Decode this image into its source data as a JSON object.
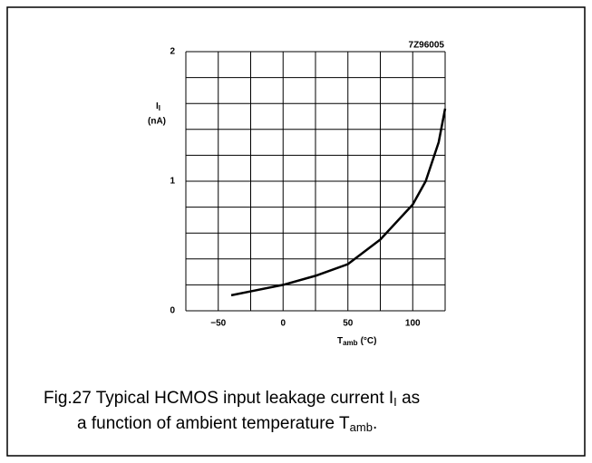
{
  "chart_data": {
    "type": "line",
    "code": "7Z96005",
    "ylabel": {
      "main": "I",
      "sub": "I",
      "unit": "(nA)"
    },
    "xlabel": {
      "main": "T",
      "sub": "amb",
      "unit": "(°C)"
    },
    "caption": {
      "line1": {
        "text": "Fig.27  Typical HCMOS input leakage current I",
        "sub": "I",
        "tail": " as"
      },
      "line2": {
        "text": "a function of ambient temperature T",
        "sub": "amb",
        "tail": "."
      }
    },
    "x": [
      -40,
      -25,
      0,
      25,
      50,
      75,
      100,
      110,
      120,
      125
    ],
    "series": [
      {
        "color": "#000000",
        "values": [
          0.12,
          0.15,
          0.2,
          0.27,
          0.36,
          0.55,
          0.82,
          1.0,
          1.3,
          1.56
        ]
      }
    ],
    "xlim": [
      -75,
      125
    ],
    "ylim": [
      0,
      2
    ],
    "xticks": [
      {
        "value": -50,
        "label": "−50"
      },
      0,
      50,
      100
    ],
    "yticks": [
      0,
      1,
      2
    ],
    "xgrid": [
      -75,
      -50,
      -25,
      0,
      25,
      50,
      75,
      100,
      125
    ],
    "ygrid": [
      0,
      0.2,
      0.4,
      0.6,
      0.8,
      1,
      1.2,
      1.4,
      1.6,
      1.8,
      2
    ],
    "grid": true
  }
}
